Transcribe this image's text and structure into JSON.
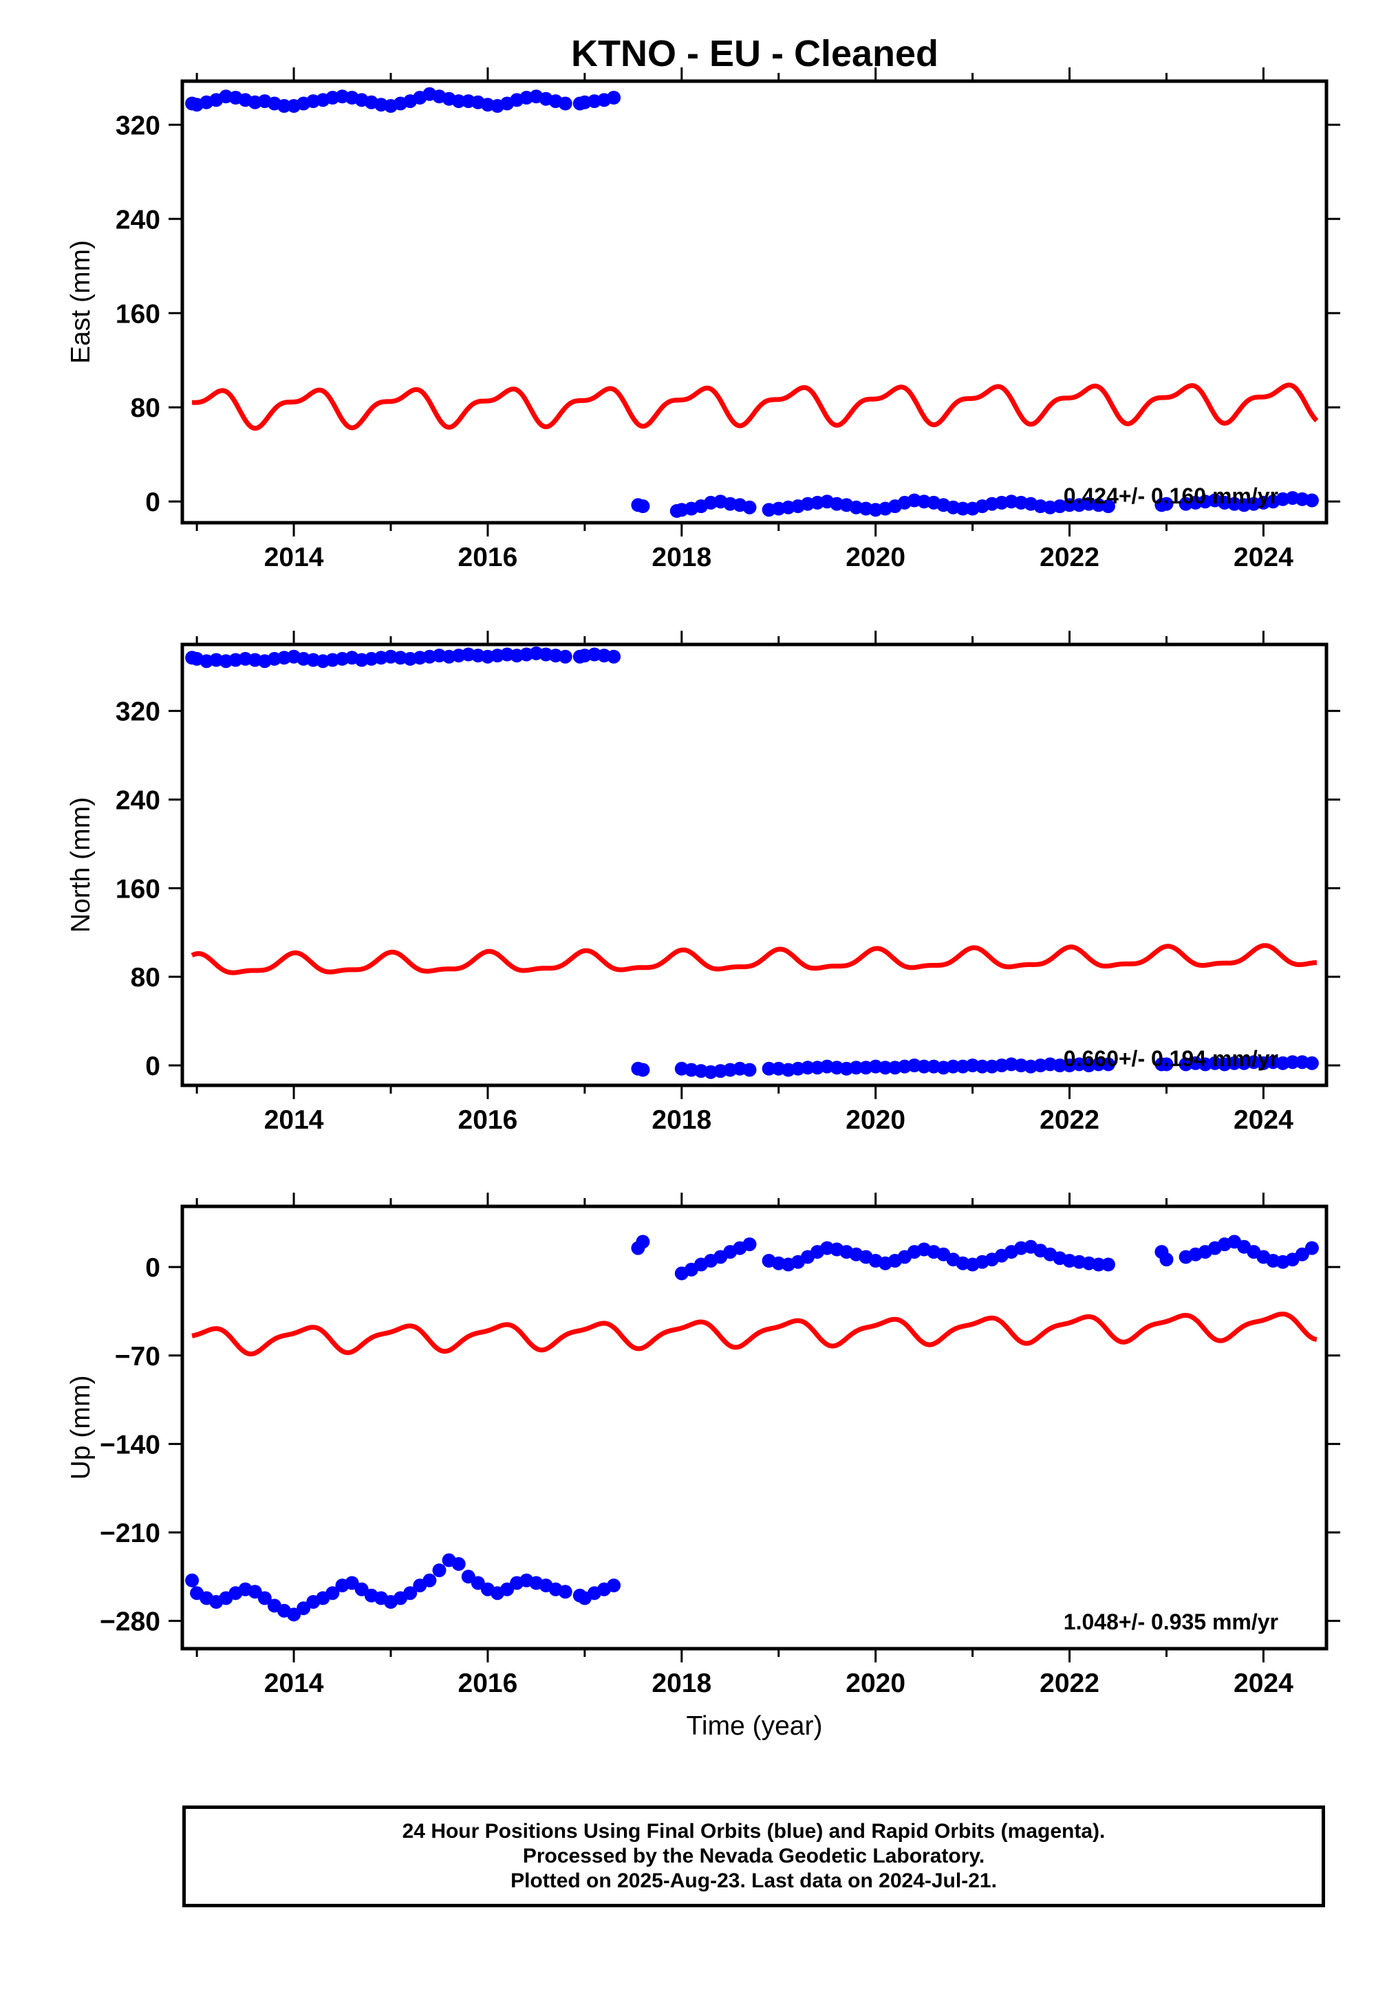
{
  "title": "KTNO  - EU - Cleaned",
  "footer": {
    "line1": "24 Hour Positions Using Final Orbits (blue) and Rapid Orbits (magenta).",
    "line2": "Processed by the Nevada Geodetic Laboratory.",
    "line3": "Plotted on 2025-Aug-23. Last data on 2024-Jul-21."
  },
  "colors": {
    "points": "#0000ff",
    "fit": "#ff0000",
    "axes": "#000000"
  },
  "chart_data": [
    {
      "type": "scatter",
      "name": "east",
      "ylabel": "East (mm)",
      "xlabel": "",
      "xlim": [
        2012.85,
        2024.65
      ],
      "ylim": [
        -18,
        357
      ],
      "xticks": [
        2014,
        2016,
        2018,
        2020,
        2022,
        2024
      ],
      "yticks": [
        0,
        80,
        160,
        240,
        320
      ],
      "rate_label": "0.424+/- 0.160 mm/yr",
      "segments": [
        {
          "x": [
            2012.95,
            2013.0,
            2013.1,
            2013.2,
            2013.3,
            2013.4,
            2013.5,
            2013.6,
            2013.7,
            2013.8,
            2013.9,
            2014.0,
            2014.1,
            2014.2,
            2014.3,
            2014.4,
            2014.5,
            2014.6,
            2014.7,
            2014.8,
            2014.9,
            2015.0,
            2015.1,
            2015.2,
            2015.3,
            2015.4,
            2015.5,
            2015.6,
            2015.7,
            2015.8,
            2015.9,
            2016.0,
            2016.1,
            2016.2,
            2016.3,
            2016.4,
            2016.5,
            2016.6,
            2016.7,
            2016.8
          ],
          "y": [
            338,
            337,
            339,
            341,
            344,
            343,
            341,
            339,
            340,
            338,
            336,
            336,
            338,
            340,
            341,
            343,
            344,
            343,
            341,
            339,
            337,
            336,
            338,
            340,
            343,
            346,
            344,
            342,
            340,
            340,
            339,
            337,
            336,
            338,
            341,
            343,
            344,
            342,
            340,
            338
          ]
        },
        {
          "x": [
            2016.95,
            2017.0,
            2017.1,
            2017.2,
            2017.3
          ],
          "y": [
            338,
            339,
            340,
            341,
            343
          ]
        },
        {
          "x": [
            2017.55,
            2017.6
          ],
          "y": [
            -3,
            -4
          ]
        },
        {
          "x": [
            2017.95,
            2018.0,
            2018.1,
            2018.2,
            2018.3,
            2018.4,
            2018.5,
            2018.6,
            2018.7
          ],
          "y": [
            -8,
            -7,
            -6,
            -4,
            -1,
            0,
            -2,
            -3,
            -5
          ]
        },
        {
          "x": [
            2018.9,
            2019.0,
            2019.1,
            2019.2,
            2019.3,
            2019.4,
            2019.5,
            2019.6,
            2019.7,
            2019.8,
            2019.9,
            2020.0,
            2020.1,
            2020.2,
            2020.3,
            2020.4,
            2020.5,
            2020.6,
            2020.7,
            2020.8,
            2020.9,
            2021.0,
            2021.1,
            2021.2,
            2021.3,
            2021.4,
            2021.5,
            2021.6,
            2021.7,
            2021.8,
            2021.9,
            2022.0,
            2022.1,
            2022.2,
            2022.3,
            2022.4
          ],
          "y": [
            -7,
            -6,
            -5,
            -4,
            -2,
            -1,
            0,
            -2,
            -3,
            -5,
            -6,
            -7,
            -6,
            -4,
            -1,
            1,
            0,
            -1,
            -3,
            -5,
            -6,
            -6,
            -4,
            -2,
            -1,
            0,
            -1,
            -2,
            -4,
            -5,
            -4,
            -3,
            -3,
            -2,
            -3,
            -4
          ]
        },
        {
          "x": [
            2022.95,
            2023.0
          ],
          "y": [
            -3,
            -2
          ]
        },
        {
          "x": [
            2023.2,
            2023.3,
            2023.4,
            2023.5,
            2023.6,
            2023.7,
            2023.8,
            2023.9,
            2024.0,
            2024.1,
            2024.2,
            2024.3,
            2024.4,
            2024.5
          ],
          "y": [
            -2,
            -1,
            0,
            1,
            -1,
            -2,
            -3,
            -2,
            -1,
            0,
            2,
            3,
            2,
            1
          ]
        }
      ],
      "fit": {
        "start": 2012.95,
        "end": 2024.55,
        "y0": 80,
        "rate": 0.424,
        "a1": 13,
        "a2": 6,
        "phase1": 0.1,
        "phase2": 0.3
      }
    },
    {
      "type": "scatter",
      "name": "north",
      "ylabel": "North (mm)",
      "xlabel": "",
      "xlim": [
        2012.85,
        2024.65
      ],
      "ylim": [
        -18,
        380
      ],
      "xticks": [
        2014,
        2016,
        2018,
        2020,
        2022,
        2024
      ],
      "yticks": [
        0,
        80,
        160,
        240,
        320
      ],
      "rate_label": "0.660+/- 0.194 mm/yr",
      "segments": [
        {
          "x": [
            2012.95,
            2013.0,
            2013.1,
            2013.2,
            2013.3,
            2013.4,
            2013.5,
            2013.6,
            2013.7,
            2013.8,
            2013.9,
            2014.0,
            2014.1,
            2014.2,
            2014.3,
            2014.4,
            2014.5,
            2014.6,
            2014.7,
            2014.8,
            2014.9,
            2015.0,
            2015.1,
            2015.2,
            2015.3,
            2015.4,
            2015.5,
            2015.6,
            2015.7,
            2015.8,
            2015.9,
            2016.0,
            2016.1,
            2016.2,
            2016.3,
            2016.4,
            2016.5,
            2016.6,
            2016.7,
            2016.8
          ],
          "y": [
            368,
            367,
            365,
            366,
            365,
            366,
            367,
            366,
            365,
            367,
            368,
            369,
            367,
            366,
            365,
            366,
            367,
            368,
            366,
            367,
            368,
            369,
            368,
            367,
            368,
            369,
            370,
            369,
            370,
            371,
            370,
            369,
            370,
            371,
            370,
            371,
            372,
            371,
            370,
            369
          ]
        },
        {
          "x": [
            2016.95,
            2017.0,
            2017.1,
            2017.2,
            2017.3
          ],
          "y": [
            369,
            370,
            371,
            370,
            369
          ]
        },
        {
          "x": [
            2017.55,
            2017.6
          ],
          "y": [
            -3,
            -4
          ]
        },
        {
          "x": [
            2018.0,
            2018.1,
            2018.2,
            2018.3,
            2018.4,
            2018.5,
            2018.6,
            2018.7
          ],
          "y": [
            -3,
            -4,
            -5,
            -6,
            -5,
            -4,
            -3,
            -4
          ]
        },
        {
          "x": [
            2018.9,
            2019.0,
            2019.1,
            2019.2,
            2019.3,
            2019.4,
            2019.5,
            2019.6,
            2019.7,
            2019.8,
            2019.9,
            2020.0,
            2020.1,
            2020.2,
            2020.3,
            2020.4,
            2020.5,
            2020.6,
            2020.7,
            2020.8,
            2020.9,
            2021.0,
            2021.1,
            2021.2,
            2021.3,
            2021.4,
            2021.5,
            2021.6,
            2021.7,
            2021.8,
            2021.9,
            2022.0,
            2022.1,
            2022.2,
            2022.3,
            2022.4
          ],
          "y": [
            -3,
            -3,
            -4,
            -3,
            -2,
            -2,
            -1,
            -2,
            -3,
            -2,
            -2,
            -1,
            -2,
            -2,
            -1,
            0,
            -1,
            -1,
            -2,
            -1,
            -1,
            0,
            -1,
            -1,
            0,
            1,
            0,
            -1,
            0,
            1,
            0,
            0,
            1,
            0,
            1,
            1
          ]
        },
        {
          "x": [
            2022.95,
            2023.0
          ],
          "y": [
            1,
            1
          ]
        },
        {
          "x": [
            2023.2,
            2023.3,
            2023.4,
            2023.5,
            2023.6,
            2023.7,
            2023.8,
            2023.9,
            2024.0,
            2024.1,
            2024.2,
            2024.3,
            2024.4,
            2024.5
          ],
          "y": [
            1,
            2,
            1,
            2,
            1,
            2,
            2,
            3,
            2,
            3,
            2,
            3,
            3,
            2
          ]
        }
      ],
      "fit": {
        "start": 2012.95,
        "end": 2024.55,
        "y0": 90,
        "rate": 0.66,
        "a1": 8,
        "a2": 3,
        "phase1": 0.25,
        "phase2": 0.1
      }
    },
    {
      "type": "scatter",
      "name": "up",
      "ylabel": "Up (mm)",
      "xlabel": "Time (year)",
      "xlim": [
        2012.85,
        2024.65
      ],
      "ylim": [
        -302,
        48
      ],
      "xticks": [
        2014,
        2016,
        2018,
        2020,
        2022,
        2024
      ],
      "yticks": [
        -280,
        -210,
        -140,
        -70,
        0
      ],
      "rate_label": "1.048+/- 0.935 mm/yr",
      "segments": [
        {
          "x": [
            2012.95,
            2013.0,
            2013.1,
            2013.2,
            2013.3,
            2013.4,
            2013.5,
            2013.6,
            2013.7,
            2013.8,
            2013.9,
            2014.0,
            2014.1,
            2014.2,
            2014.3,
            2014.4,
            2014.5,
            2014.6,
            2014.7,
            2014.8,
            2014.9,
            2015.0,
            2015.1,
            2015.2,
            2015.3,
            2015.4,
            2015.5,
            2015.6,
            2015.7,
            2015.8,
            2015.9,
            2016.0,
            2016.1,
            2016.2,
            2016.3,
            2016.4,
            2016.5,
            2016.6,
            2016.7,
            2016.8
          ],
          "y": [
            -248,
            -258,
            -262,
            -265,
            -262,
            -258,
            -255,
            -257,
            -262,
            -268,
            -272,
            -275,
            -270,
            -265,
            -262,
            -258,
            -252,
            -250,
            -255,
            -260,
            -262,
            -265,
            -262,
            -258,
            -252,
            -248,
            -240,
            -232,
            -235,
            -245,
            -250,
            -255,
            -258,
            -255,
            -250,
            -248,
            -250,
            -252,
            -255,
            -257
          ]
        },
        {
          "x": [
            2016.95,
            2017.0,
            2017.1,
            2017.2,
            2017.3
          ],
          "y": [
            -260,
            -262,
            -258,
            -255,
            -252
          ]
        },
        {
          "x": [
            2017.55,
            2017.6
          ],
          "y": [
            15,
            20
          ]
        },
        {
          "x": [
            2018.0,
            2018.1,
            2018.2,
            2018.3,
            2018.4,
            2018.5,
            2018.6,
            2018.7
          ],
          "y": [
            -5,
            -2,
            2,
            5,
            8,
            12,
            15,
            18
          ]
        },
        {
          "x": [
            2018.9,
            2019.0,
            2019.1,
            2019.2,
            2019.3,
            2019.4,
            2019.5,
            2019.6,
            2019.7,
            2019.8,
            2019.9,
            2020.0,
            2020.1,
            2020.2,
            2020.3,
            2020.4,
            2020.5,
            2020.6,
            2020.7,
            2020.8,
            2020.9,
            2021.0,
            2021.1,
            2021.2,
            2021.3,
            2021.4,
            2021.5,
            2021.6,
            2021.7,
            2021.8,
            2021.9,
            2022.0,
            2022.1,
            2022.2,
            2022.3,
            2022.4
          ],
          "y": [
            5,
            3,
            2,
            4,
            8,
            12,
            15,
            14,
            12,
            10,
            8,
            5,
            3,
            5,
            8,
            12,
            14,
            12,
            10,
            6,
            3,
            2,
            4,
            6,
            9,
            12,
            15,
            16,
            13,
            10,
            7,
            5,
            4,
            3,
            2,
            2
          ]
        },
        {
          "x": [
            2022.95,
            2023.0
          ],
          "y": [
            12,
            6
          ]
        },
        {
          "x": [
            2023.2,
            2023.3,
            2023.4,
            2023.5,
            2023.6,
            2023.7,
            2023.8,
            2023.9,
            2024.0,
            2024.1,
            2024.2,
            2024.3,
            2024.4,
            2024.5
          ],
          "y": [
            8,
            10,
            12,
            15,
            18,
            20,
            16,
            12,
            8,
            5,
            4,
            6,
            10,
            15
          ]
        }
      ],
      "fit": {
        "start": 2012.95,
        "end": 2024.55,
        "y0": -58,
        "rate": 1.048,
        "a1": 9,
        "a2": 3,
        "phase1": 0.15,
        "phase2": 0.35
      }
    }
  ]
}
